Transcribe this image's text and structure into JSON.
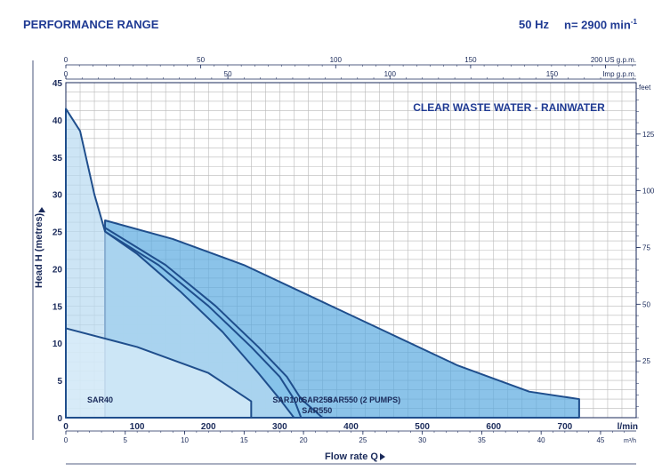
{
  "header": {
    "title": "PERFORMANCE RANGE",
    "frequency": "50 Hz",
    "speed": "n= 2900 min",
    "speed_exp": "-1"
  },
  "chart_data": {
    "type": "area",
    "title": "CLEAR WASTE WATER - RAINWATER",
    "xlabel": "Flow rate Q",
    "ylabel": "Head H (metres)",
    "x_unit": "l/min",
    "xlim": [
      0,
      800
    ],
    "ylim": [
      0,
      45
    ],
    "x_ticks": [
      "0",
      "100",
      "200",
      "300",
      "400",
      "500",
      "600",
      "700"
    ],
    "y_ticks": [
      "0",
      "5",
      "10",
      "15",
      "20",
      "25",
      "30",
      "35",
      "40",
      "45"
    ],
    "grid": true,
    "secondary_axes": {
      "us_gpm": {
        "label": "US g.p.m.",
        "ticks": [
          "0",
          "50",
          "100",
          "150",
          "200"
        ]
      },
      "imp_gpm": {
        "label": "Imp g.p.m.",
        "ticks": [
          "0",
          "50",
          "100",
          "150"
        ]
      },
      "m3h": {
        "label": "m³/h",
        "ticks": [
          "0",
          "5",
          "10",
          "15",
          "20",
          "25",
          "30",
          "35",
          "40",
          "45"
        ]
      },
      "feet": {
        "label": "feet",
        "ticks": [
          "25",
          "50",
          "75",
          "100",
          "125"
        ]
      }
    },
    "series": [
      {
        "name": "SAR40",
        "color": "#dbeef9",
        "points": [
          [
            0,
            12.0
          ],
          [
            100,
            9.5
          ],
          [
            200,
            6.0
          ],
          [
            260,
            2.2
          ],
          [
            260,
            0
          ]
        ]
      },
      {
        "name": "SAR100",
        "color": "#b8daf1",
        "points": [
          [
            0,
            41.5
          ],
          [
            20,
            38.5
          ],
          [
            40,
            30.0
          ],
          [
            55,
            25.0
          ],
          [
            100,
            22.0
          ],
          [
            160,
            17.0
          ],
          [
            220,
            11.5
          ],
          [
            270,
            6.0
          ],
          [
            300,
            2.5
          ],
          [
            320,
            0
          ]
        ]
      },
      {
        "name": "SAR250",
        "color": "#86c3ea",
        "points": [
          [
            55,
            25.0
          ],
          [
            130,
            20.5
          ],
          [
            200,
            15.0
          ],
          [
            260,
            9.5
          ],
          [
            300,
            5.5
          ],
          [
            320,
            2.5
          ],
          [
            330,
            0
          ]
        ]
      },
      {
        "name": "SAR550",
        "color": "#86c3ea",
        "points": [
          [
            55,
            25.5
          ],
          [
            140,
            20.5
          ],
          [
            210,
            15.0
          ],
          [
            270,
            9.5
          ],
          [
            310,
            5.5
          ],
          [
            330,
            2.5
          ],
          [
            360,
            0
          ]
        ]
      },
      {
        "name": "SAR550 (2 PUMPS)",
        "color": "#5aa9df",
        "points": [
          [
            55,
            26.5
          ],
          [
            150,
            24.0
          ],
          [
            250,
            20.5
          ],
          [
            350,
            16.0
          ],
          [
            450,
            11.5
          ],
          [
            550,
            7.0
          ],
          [
            650,
            3.5
          ],
          [
            720,
            2.5
          ],
          [
            720,
            0
          ]
        ]
      }
    ]
  }
}
